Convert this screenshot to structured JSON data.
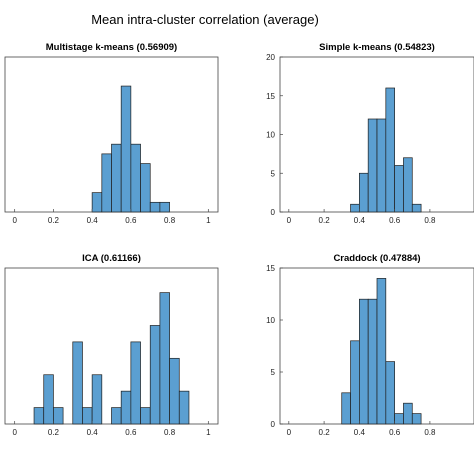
{
  "figure": {
    "title": "Mean intra-cluster correlation (average)"
  },
  "chart_data": [
    {
      "type": "bar",
      "title": "Multistage k-means (0.56909)",
      "bin_width": 0.05,
      "bin_starts": [
        0.4,
        0.45,
        0.5,
        0.55,
        0.6,
        0.65,
        0.7,
        0.75
      ],
      "values": [
        2,
        6,
        7,
        13,
        7,
        5,
        1,
        1
      ],
      "xlim": [
        -0.05,
        1.05
      ],
      "ylim": [
        0,
        16
      ],
      "xticks": [
        "0",
        "0.2",
        "0.4",
        "0.6",
        "0.8",
        "1"
      ],
      "xtick_values": [
        0,
        0.2,
        0.4,
        0.6,
        0.8,
        1
      ],
      "yticks": [],
      "color": "#5b9fd1"
    },
    {
      "type": "bar",
      "title": "Simple k-means (0.54823)",
      "bin_width": 0.05,
      "bin_starts": [
        0.35,
        0.4,
        0.45,
        0.5,
        0.55,
        0.6,
        0.65,
        0.7
      ],
      "values": [
        1,
        5,
        12,
        12,
        16,
        6,
        7,
        1
      ],
      "xlim": [
        -0.05,
        1.05
      ],
      "ylim": [
        0,
        20
      ],
      "xticks": [
        "0",
        "0.2",
        "0.4",
        "0.6",
        "0.8"
      ],
      "xtick_values": [
        0,
        0.2,
        0.4,
        0.6,
        0.8
      ],
      "yticks": [
        "0",
        "5",
        "10",
        "15",
        "20"
      ],
      "ytick_values": [
        0,
        5,
        10,
        15,
        20
      ],
      "color": "#5b9fd1"
    },
    {
      "type": "bar",
      "title": "ICA (0.61166)",
      "bin_width": 0.05,
      "bin_starts": [
        0.1,
        0.15,
        0.2,
        0.25,
        0.3,
        0.35,
        0.4,
        0.45,
        0.5,
        0.55,
        0.6,
        0.65,
        0.7,
        0.75,
        0.8,
        0.85
      ],
      "values": [
        1,
        3,
        1,
        0,
        5,
        1,
        3,
        0,
        1,
        2,
        5,
        1,
        6,
        8,
        4,
        2
      ],
      "xlim": [
        -0.05,
        1.05
      ],
      "ylim": [
        0,
        9.5
      ],
      "xticks": [
        "0",
        "0.2",
        "0.4",
        "0.6",
        "0.8",
        "1"
      ],
      "xtick_values": [
        0,
        0.2,
        0.4,
        0.6,
        0.8,
        1
      ],
      "yticks": [],
      "color": "#5b9fd1"
    },
    {
      "type": "bar",
      "title": "Craddock (0.47884)",
      "bin_width": 0.05,
      "bin_starts": [
        0.3,
        0.35,
        0.4,
        0.45,
        0.5,
        0.55,
        0.6,
        0.65,
        0.7
      ],
      "values": [
        3,
        8,
        12,
        12,
        14,
        6,
        1,
        2,
        1
      ],
      "xlim": [
        -0.05,
        1.05
      ],
      "ylim": [
        0,
        15
      ],
      "xticks": [
        "0",
        "0.2",
        "0.4",
        "0.6",
        "0.8"
      ],
      "xtick_values": [
        0,
        0.2,
        0.4,
        0.6,
        0.8
      ],
      "yticks": [
        "0",
        "5",
        "10",
        "15"
      ],
      "ytick_values": [
        0,
        5,
        10,
        15
      ],
      "color": "#5b9fd1"
    }
  ]
}
